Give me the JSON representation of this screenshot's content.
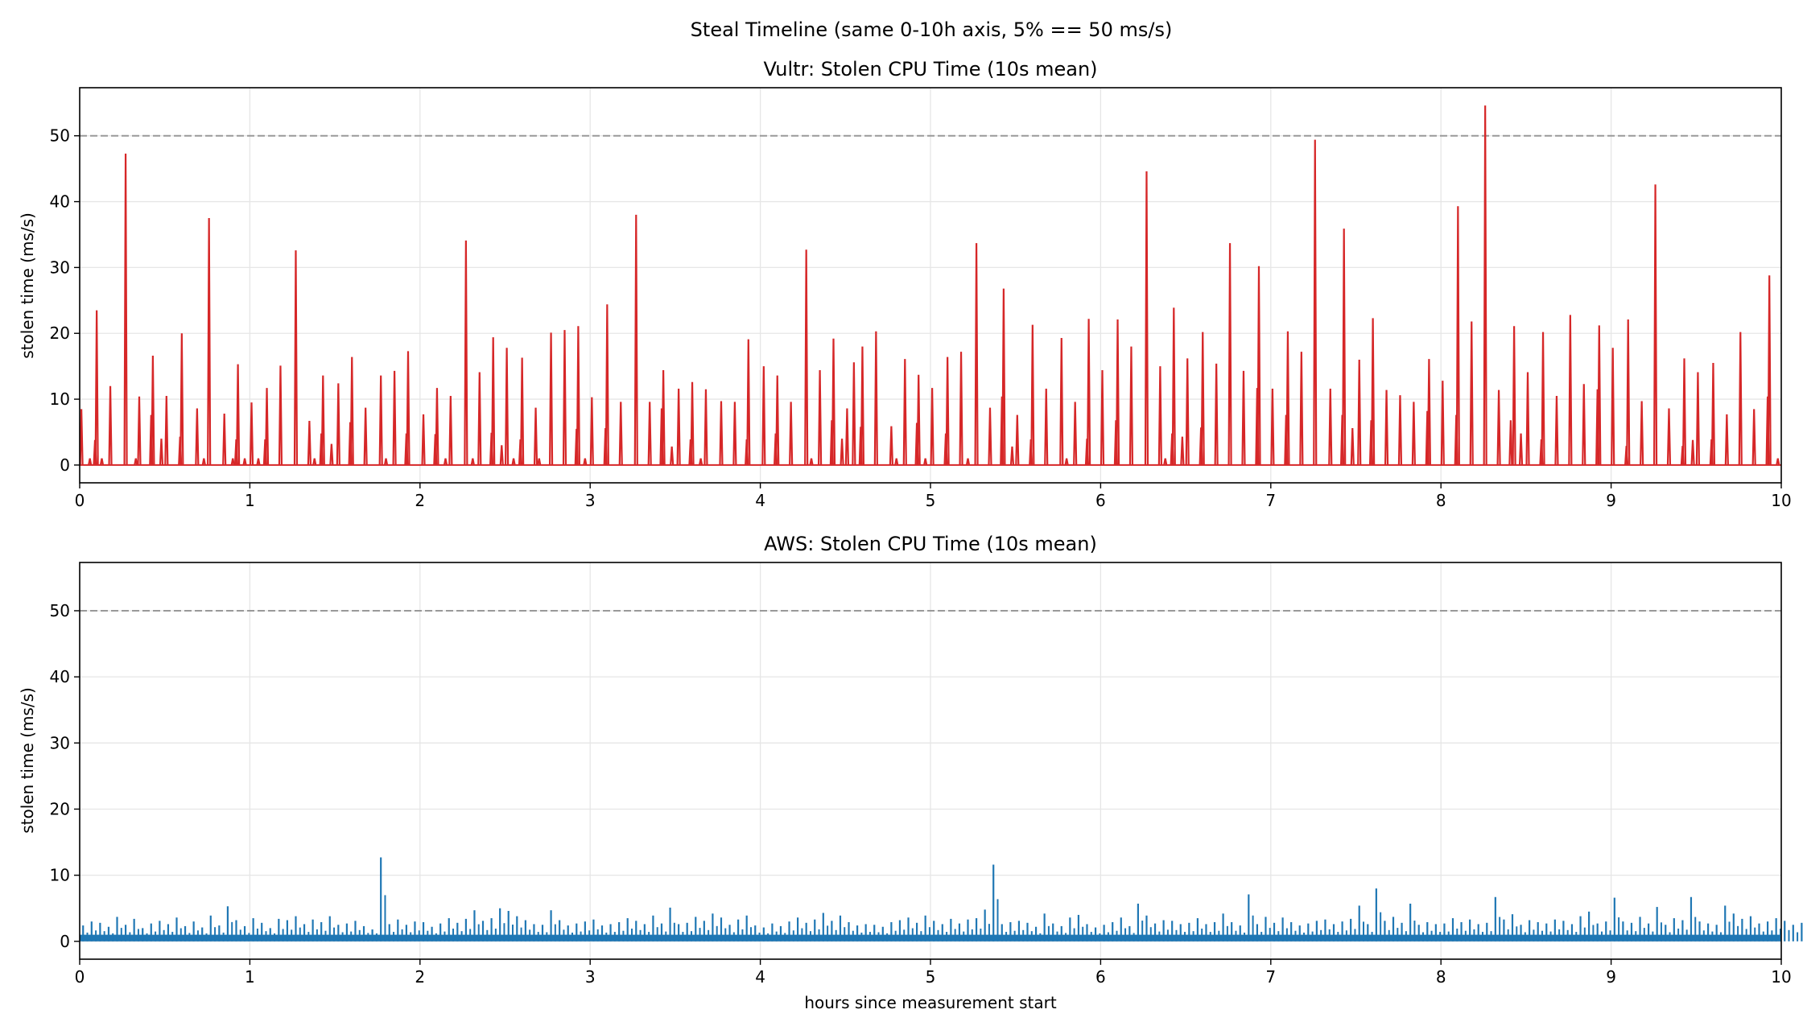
{
  "chart_data": {
    "title": "Steal Timeline (same 0-10h axis, 5% == 50 ms/s)",
    "colors": {
      "vultr": "#d62728",
      "aws": "#1f77b4",
      "reference_line": "#999999",
      "grid": "#e6e6e6"
    },
    "charts": [
      {
        "type": "line",
        "title": "Vultr: Stolen CPU Time (10s mean)",
        "xlabel": "",
        "ylabel": "stolen time (ms/s)",
        "xlim": [
          0,
          10
        ],
        "ylim": [
          -2.7,
          57.3
        ],
        "xticks": [
          "0",
          "1",
          "2",
          "3",
          "4",
          "5",
          "6",
          "7",
          "8",
          "9",
          "10"
        ],
        "yticks": [
          "0",
          "10",
          "20",
          "30",
          "40",
          "50"
        ],
        "grid": true,
        "reference_line": {
          "y": 50,
          "style": "dashed"
        },
        "baseline": 0,
        "peaks": [
          [
            0.01,
            8.5
          ],
          [
            0.06,
            1
          ],
          [
            0.09,
            3.8
          ],
          [
            0.1,
            23.5
          ],
          [
            0.13,
            1
          ],
          [
            0.18,
            12
          ],
          [
            0.27,
            47.3
          ],
          [
            0.33,
            1
          ],
          [
            0.35,
            10.4
          ],
          [
            0.42,
            7.6
          ],
          [
            0.43,
            16.6
          ],
          [
            0.48,
            4
          ],
          [
            0.51,
            10.5
          ],
          [
            0.59,
            4.3
          ],
          [
            0.6,
            20
          ],
          [
            0.69,
            8.6
          ],
          [
            0.73,
            1
          ],
          [
            0.76,
            37.5
          ],
          [
            0.85,
            7.8
          ],
          [
            0.9,
            1
          ],
          [
            0.92,
            3.9
          ],
          [
            0.93,
            15.3
          ],
          [
            0.97,
            1
          ],
          [
            1.01,
            9.5
          ],
          [
            1.05,
            1
          ],
          [
            1.09,
            3.9
          ],
          [
            1.1,
            11.7
          ],
          [
            1.18,
            15.1
          ],
          [
            1.27,
            32.6
          ],
          [
            1.35,
            6.7
          ],
          [
            1.38,
            1
          ],
          [
            1.42,
            4.8
          ],
          [
            1.43,
            13.6
          ],
          [
            1.48,
            3.2
          ],
          [
            1.52,
            12.4
          ],
          [
            1.59,
            6.5
          ],
          [
            1.6,
            16.4
          ],
          [
            1.68,
            8.7
          ],
          [
            1.77,
            13.6
          ],
          [
            1.8,
            1
          ],
          [
            1.85,
            14.3
          ],
          [
            1.92,
            4.8
          ],
          [
            1.93,
            17.3
          ],
          [
            2.02,
            7.7
          ],
          [
            2.09,
            4.7
          ],
          [
            2.1,
            11.7
          ],
          [
            2.15,
            1
          ],
          [
            2.18,
            10.5
          ],
          [
            2.27,
            34.1
          ],
          [
            2.31,
            1
          ],
          [
            2.35,
            14.1
          ],
          [
            2.42,
            4.9
          ],
          [
            2.43,
            19.4
          ],
          [
            2.48,
            3
          ],
          [
            2.51,
            17.8
          ],
          [
            2.55,
            1
          ],
          [
            2.59,
            3.9
          ],
          [
            2.6,
            16.3
          ],
          [
            2.68,
            8.7
          ],
          [
            2.7,
            1
          ],
          [
            2.77,
            20.1
          ],
          [
            2.85,
            20.5
          ],
          [
            2.92,
            5.5
          ],
          [
            2.93,
            21.1
          ],
          [
            2.97,
            1
          ],
          [
            3.01,
            10.3
          ],
          [
            3.09,
            5.6
          ],
          [
            3.1,
            24.4
          ],
          [
            3.18,
            9.6
          ],
          [
            3.27,
            38
          ],
          [
            3.35,
            9.6
          ],
          [
            3.42,
            8.6
          ],
          [
            3.43,
            14.4
          ],
          [
            3.48,
            2.8
          ],
          [
            3.52,
            11.6
          ],
          [
            3.59,
            3.9
          ],
          [
            3.6,
            12.6
          ],
          [
            3.65,
            1
          ],
          [
            3.68,
            11.5
          ],
          [
            3.77,
            9.7
          ],
          [
            3.85,
            9.6
          ],
          [
            3.92,
            3.9
          ],
          [
            3.93,
            19.1
          ],
          [
            4.02,
            15
          ],
          [
            4.09,
            4.8
          ],
          [
            4.1,
            13.6
          ],
          [
            4.18,
            9.6
          ],
          [
            4.27,
            32.7
          ],
          [
            4.3,
            1
          ],
          [
            4.35,
            14.4
          ],
          [
            4.42,
            6.8
          ],
          [
            4.43,
            19.2
          ],
          [
            4.48,
            4
          ],
          [
            4.51,
            8.6
          ],
          [
            4.55,
            15.6
          ],
          [
            4.59,
            5.8
          ],
          [
            4.6,
            18
          ],
          [
            4.68,
            20.3
          ],
          [
            4.77,
            5.9
          ],
          [
            4.8,
            1
          ],
          [
            4.85,
            16.1
          ],
          [
            4.92,
            6.4
          ],
          [
            4.93,
            13.7
          ],
          [
            4.97,
            1
          ],
          [
            5.01,
            11.7
          ],
          [
            5.09,
            4.8
          ],
          [
            5.1,
            16.4
          ],
          [
            5.18,
            17.2
          ],
          [
            5.22,
            1
          ],
          [
            5.27,
            33.7
          ],
          [
            5.35,
            8.7
          ],
          [
            5.42,
            10.4
          ],
          [
            5.43,
            26.8
          ],
          [
            5.48,
            2.8
          ],
          [
            5.51,
            7.6
          ],
          [
            5.59,
            3.9
          ],
          [
            5.6,
            21.3
          ],
          [
            5.68,
            11.6
          ],
          [
            5.77,
            19.3
          ],
          [
            5.8,
            1
          ],
          [
            5.85,
            9.6
          ],
          [
            5.92,
            4
          ],
          [
            5.93,
            22.2
          ],
          [
            6.01,
            14.4
          ],
          [
            6.09,
            6.8
          ],
          [
            6.1,
            22.1
          ],
          [
            6.18,
            18
          ],
          [
            6.27,
            44.6
          ],
          [
            6.35,
            15
          ],
          [
            6.38,
            1
          ],
          [
            6.42,
            4.8
          ],
          [
            6.43,
            23.9
          ],
          [
            6.48,
            4.3
          ],
          [
            6.51,
            16.2
          ],
          [
            6.59,
            5.7
          ],
          [
            6.6,
            20.2
          ],
          [
            6.68,
            15.4
          ],
          [
            6.76,
            33.7
          ],
          [
            6.84,
            14.3
          ],
          [
            6.92,
            11.7
          ],
          [
            6.93,
            30.2
          ],
          [
            7.01,
            11.6
          ],
          [
            7.09,
            7.6
          ],
          [
            7.1,
            20.3
          ],
          [
            7.18,
            17.2
          ],
          [
            7.26,
            49.4
          ],
          [
            7.35,
            11.6
          ],
          [
            7.42,
            7.6
          ],
          [
            7.43,
            35.9
          ],
          [
            7.48,
            5.6
          ],
          [
            7.52,
            16
          ],
          [
            7.59,
            6.8
          ],
          [
            7.6,
            22.3
          ],
          [
            7.68,
            11.4
          ],
          [
            7.76,
            10.6
          ],
          [
            7.84,
            9.6
          ],
          [
            7.92,
            8.2
          ],
          [
            7.93,
            16.1
          ],
          [
            8.01,
            12.8
          ],
          [
            8.09,
            7.6
          ],
          [
            8.1,
            39.3
          ],
          [
            8.18,
            21.8
          ],
          [
            8.26,
            54.6
          ],
          [
            8.34,
            11.4
          ],
          [
            8.41,
            6.8
          ],
          [
            8.43,
            21.1
          ],
          [
            8.47,
            4.8
          ],
          [
            8.51,
            14.1
          ],
          [
            8.59,
            3.9
          ],
          [
            8.6,
            20.2
          ],
          [
            8.68,
            10.5
          ],
          [
            8.76,
            22.8
          ],
          [
            8.84,
            12.3
          ],
          [
            8.92,
            11.5
          ],
          [
            8.93,
            21.2
          ],
          [
            9.01,
            17.8
          ],
          [
            9.09,
            2.9
          ],
          [
            9.1,
            22.1
          ],
          [
            9.18,
            9.7
          ],
          [
            9.26,
            42.6
          ],
          [
            9.34,
            8.6
          ],
          [
            9.42,
            2.9
          ],
          [
            9.43,
            16.2
          ],
          [
            9.48,
            3.8
          ],
          [
            9.51,
            14.1
          ],
          [
            9.59,
            3.9
          ],
          [
            9.6,
            15.5
          ],
          [
            9.68,
            7.7
          ],
          [
            9.76,
            20.2
          ],
          [
            9.84,
            8.5
          ],
          [
            9.92,
            10.4
          ],
          [
            9.93,
            28.8
          ],
          [
            9.98,
            1
          ]
        ]
      },
      {
        "type": "line",
        "title": "AWS: Stolen CPU Time (10s mean)",
        "xlabel": "hours since measurement start",
        "ylabel": "stolen time (ms/s)",
        "xlim": [
          0,
          10
        ],
        "ylim": [
          -2.7,
          57.3
        ],
        "xticks": [
          "0",
          "1",
          "2",
          "3",
          "4",
          "5",
          "6",
          "7",
          "8",
          "9",
          "10"
        ],
        "yticks": [
          "0",
          "10",
          "20",
          "30",
          "40",
          "50"
        ],
        "grid": true,
        "reference_line": {
          "y": 50,
          "style": "dashed"
        },
        "baseline_band": [
          0,
          1
        ],
        "x_step": 0.05,
        "peaks": [
          2.4,
          3,
          2.8,
          2.2,
          3.7,
          2.5,
          3.4,
          2,
          2.7,
          3.1,
          2.6,
          3.6,
          2.3,
          3,
          2.1,
          3.9,
          2.4,
          5.3,
          3.2,
          2.3,
          3.5,
          2.8,
          2,
          3.4,
          3.2,
          3.8,
          2.6,
          3.3,
          2.9,
          3.8,
          2.5,
          2.7,
          3.1,
          2.3,
          1.8,
          12.7,
          2.6,
          3.3,
          2.5,
          3,
          2.9,
          2.2,
          2.7,
          3.5,
          2.8,
          3.4,
          4.7,
          3.1,
          3.5,
          5,
          4.6,
          3.8,
          3.2,
          2.6,
          2.5,
          4.7,
          3.2,
          2.4,
          2.7,
          3,
          3.3,
          2.4,
          2.6,
          2.9,
          3.5,
          3.1,
          2.6,
          3.9,
          2.7,
          5.1,
          2.6,
          2.8,
          3.7,
          3.1,
          4.2,
          3.6,
          2.5,
          3.3,
          3.9,
          2.4,
          2.1,
          2.7,
          2.3,
          3,
          3.6,
          2.8,
          3.3,
          4.3,
          3.1,
          3.9,
          2.9,
          2.4,
          2.6,
          2.5,
          2.2,
          2.9,
          3.2,
          3.6,
          2.8,
          3.9,
          3.1,
          2.6,
          3.4,
          2.7,
          3.3,
          3.5,
          4.8,
          11.6,
          2.6,
          2.9,
          3.1,
          2.8,
          2.2,
          4.2,
          2.7,
          2.3,
          3.6,
          4,
          2.6,
          2.1,
          2.5,
          2.9,
          3.6,
          2.3,
          5.7,
          3.9,
          2.7,
          3.2,
          3.1,
          2.6,
          2.8,
          3.5,
          2.6,
          2.9,
          4.2,
          2.9,
          2.4,
          7.1,
          2.6,
          3.7,
          2.8,
          3.6,
          2.9,
          2.4,
          2.7,
          3.1,
          3.3,
          2.6,
          3,
          3.4,
          5.4,
          2.6,
          8,
          3.1,
          3.7,
          2.8,
          5.7,
          2.5,
          2.9,
          2.6,
          2.7,
          3.5,
          2.9,
          3.3,
          2.6,
          2.8,
          6.7,
          3.3,
          4.1,
          2.5,
          3.2,
          2.9,
          2.7,
          3.3,
          3.1,
          2.6,
          3.8,
          4.5,
          2.7,
          3,
          6.6,
          3,
          2.8,
          3.7,
          2.7,
          5.2,
          2.5,
          3.5,
          3.2,
          6.7,
          3,
          2.7,
          2.5,
          5.4,
          4.2,
          3.4,
          3.8,
          2.7,
          3,
          3.5,
          3.1,
          2.5,
          2.8,
          3.2
        ]
      }
    ]
  }
}
